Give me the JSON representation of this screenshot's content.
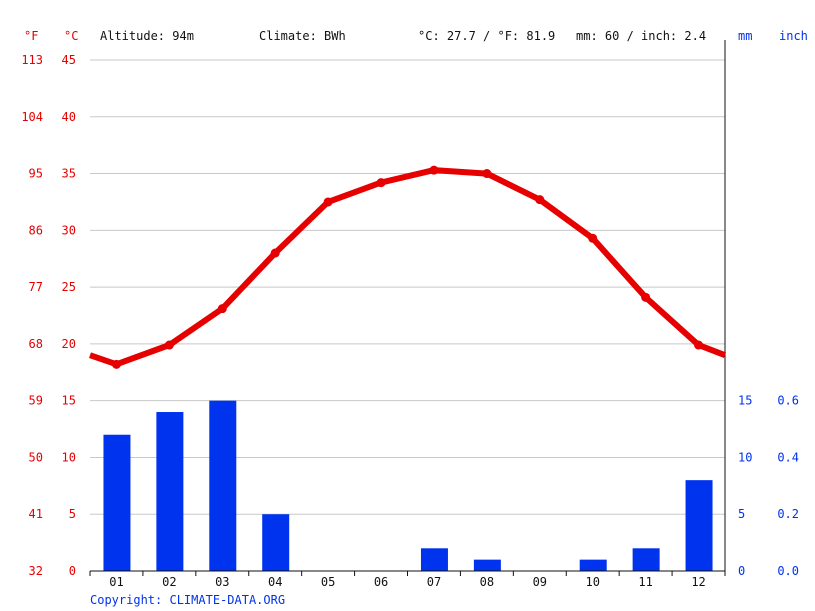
{
  "header": {
    "unit_f": "°F",
    "unit_c": "°C",
    "altitude": "Altitude: 94m",
    "climate": "Climate: BWh",
    "temp_avg": "°C: 27.7 / °F: 81.9",
    "precip_total": "mm: 60 / inch: 2.4",
    "unit_mm": "mm",
    "unit_inch": "inch"
  },
  "copyright": "Copyright: CLIMATE-DATA.ORG",
  "colors": {
    "temperature": "#e60000",
    "precipitation": "#0033ee",
    "grid": "#c8c8c8",
    "axis": "#111111"
  },
  "chart_data": {
    "type": "bar+line",
    "categories": [
      "01",
      "02",
      "03",
      "04",
      "05",
      "06",
      "07",
      "08",
      "09",
      "10",
      "11",
      "12"
    ],
    "temperature_c": {
      "values": [
        18.2,
        19.9,
        23.1,
        28.0,
        32.5,
        34.2,
        35.3,
        35.0,
        32.7,
        29.3,
        24.1,
        19.9
      ],
      "start_edge": 19.0,
      "end_edge": 19.0,
      "ylim": [
        0,
        45
      ]
    },
    "precipitation_mm": {
      "values": [
        12,
        14,
        15,
        5,
        0,
        0,
        2,
        1,
        0,
        1,
        2,
        8
      ],
      "ylim": [
        0,
        45
      ]
    },
    "left_axis_c_ticks": [
      "45",
      "40",
      "35",
      "30",
      "25",
      "20",
      "15",
      "10",
      "5",
      "0"
    ],
    "left_axis_f_ticks": [
      "113",
      "104",
      "95",
      "86",
      "77",
      "68",
      "59",
      "50",
      "41",
      "32"
    ],
    "right_axis_mm_ticks": [
      "15",
      "10",
      "5",
      "0"
    ],
    "right_axis_inch_ticks": [
      "0.6",
      "0.4",
      "0.2",
      "0.0"
    ],
    "grid": true
  }
}
